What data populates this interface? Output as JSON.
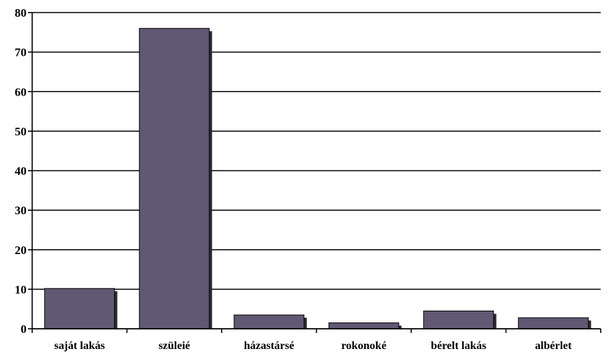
{
  "chart_data": {
    "type": "bar",
    "categories": [
      "saját lakás",
      "szüleié",
      "házastársé",
      "rokonoké",
      "bérelt lakás",
      "albérlet"
    ],
    "values": [
      10.2,
      76,
      3.5,
      1.5,
      4.5,
      2.8
    ],
    "title": "",
    "xlabel": "",
    "ylabel": "",
    "ylim": [
      0,
      80
    ],
    "yticks": [
      "0",
      "10",
      "20",
      "30",
      "40",
      "50",
      "60",
      "70",
      "80"
    ],
    "grid": true,
    "legend": "none",
    "colors": {
      "bar": "#615873",
      "bar_shadow": "#2b2b2b",
      "bar_border": "#000000",
      "grid": "#000000",
      "axis": "#000000"
    }
  }
}
